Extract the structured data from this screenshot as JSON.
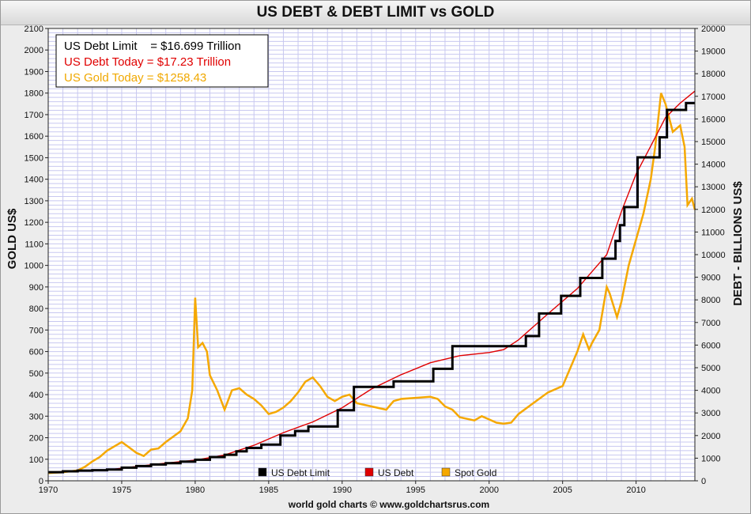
{
  "title": "US DEBT & DEBT LIMIT vs GOLD",
  "info_box": [
    {
      "text": "US Debt Limit    = $16.699 Trillion",
      "color": "#000000"
    },
    {
      "text": "US Debt Today = $17.23 Trillion",
      "color": "#e00000"
    },
    {
      "text": "US Gold Today = $1258.43",
      "color": "#f0a800"
    }
  ],
  "footer": "world gold charts © www.goldchartsrus.com",
  "colors": {
    "debt_limit": "#000000",
    "debt": "#e00000",
    "gold": "#f5a800",
    "grid": "#c8c8f0"
  },
  "chart_data": {
    "type": "line",
    "title": "US DEBT & DEBT LIMIT vs GOLD",
    "ylabel_left": "GOLD US$",
    "ylabel_right": "DEBT - BILLIONS US$",
    "xlabel": "",
    "xlim": [
      1970,
      2014
    ],
    "ylim_left": [
      0,
      2100
    ],
    "ylim_right": [
      0,
      20000
    ],
    "grid": true,
    "legend_position": "bottom-center",
    "x_ticks": [
      1970,
      1975,
      1980,
      1985,
      1990,
      1995,
      2000,
      2005,
      2010
    ],
    "y_ticks_left": [
      0,
      100,
      200,
      300,
      400,
      500,
      600,
      700,
      800,
      900,
      1000,
      1100,
      1200,
      1300,
      1400,
      1500,
      1600,
      1700,
      1800,
      1900,
      2000,
      2100
    ],
    "y_ticks_right": [
      0,
      1000,
      2000,
      3000,
      4000,
      5000,
      6000,
      7000,
      8000,
      9000,
      10000,
      11000,
      12000,
      13000,
      14000,
      15000,
      16000,
      17000,
      18000,
      19000,
      20000
    ],
    "series": [
      {
        "name": "US Debt Limit",
        "axis": "right",
        "step": true,
        "x": [
          1970,
          1971,
          1972,
          1973,
          1974,
          1975,
          1976,
          1977,
          1978,
          1979,
          1980,
          1981,
          1982,
          1982.8,
          1983.5,
          1984.5,
          1985.8,
          1986.8,
          1987.7,
          1989.7,
          1990.8,
          1993.5,
          1996.2,
          1997.5,
          2002.5,
          2003.4,
          2004.9,
          2006.2,
          2007.7,
          2008.6,
          2008.9,
          2009.2,
          2010.1,
          2011.6,
          2012.1,
          2013.4
        ],
        "values": [
          380,
          420,
          450,
          470,
          500,
          580,
          650,
          720,
          780,
          850,
          930,
          1050,
          1150,
          1300,
          1450,
          1600,
          2000,
          2200,
          2400,
          3120,
          4150,
          4400,
          4950,
          5950,
          6400,
          7400,
          8180,
          8970,
          9820,
          10600,
          11300,
          12100,
          14300,
          15190,
          16400,
          16700
        ]
      },
      {
        "name": "US Debt",
        "axis": "right",
        "step": false,
        "x": [
          1970,
          1972,
          1974,
          1976,
          1978,
          1980,
          1982,
          1984,
          1986,
          1988,
          1990,
          1992,
          1994,
          1996,
          1998,
          2000,
          2001,
          2002,
          2004,
          2006,
          2008,
          2009,
          2010,
          2011,
          2012,
          2013,
          2014
        ],
        "values": [
          380,
          430,
          480,
          630,
          780,
          910,
          1140,
          1570,
          2130,
          2600,
          3230,
          4060,
          4690,
          5220,
          5530,
          5670,
          5800,
          6230,
          7380,
          8500,
          10000,
          11900,
          13560,
          14800,
          16060,
          16700,
          17230
        ]
      },
      {
        "name": "Spot Gold",
        "axis": "left",
        "step": false,
        "x": [
          1970,
          1971,
          1972,
          1972.5,
          1973,
          1973.5,
          1974,
          1974.5,
          1975,
          1975.5,
          1976,
          1976.5,
          1977,
          1977.5,
          1978,
          1978.5,
          1979,
          1979.5,
          1979.8,
          1980.0,
          1980.2,
          1980.5,
          1980.8,
          1981,
          1981.5,
          1982,
          1982.5,
          1983,
          1983.5,
          1984,
          1984.5,
          1985,
          1985.5,
          1986,
          1986.5,
          1987,
          1987.5,
          1988,
          1988.5,
          1989,
          1989.5,
          1990,
          1990.5,
          1991,
          1992,
          1993,
          1993.5,
          1994,
          1995,
          1996,
          1996.5,
          1997,
          1997.5,
          1998,
          1999,
          1999.5,
          2000,
          2000.5,
          2001,
          2001.5,
          2002,
          2003,
          2004,
          2005,
          2005.5,
          2006,
          2006.4,
          2006.8,
          2007,
          2007.5,
          2008,
          2008.2,
          2008.7,
          2009,
          2009.5,
          2010,
          2010.5,
          2011,
          2011.3,
          2011.7,
          2012,
          2012.5,
          2013,
          2013.3,
          2013.5,
          2013.8,
          2014
        ],
        "values": [
          36,
          40,
          48,
          65,
          90,
          110,
          140,
          160,
          180,
          155,
          130,
          115,
          145,
          150,
          180,
          205,
          230,
          290,
          420,
          850,
          620,
          640,
          600,
          490,
          420,
          330,
          420,
          430,
          400,
          380,
          350,
          310,
          320,
          340,
          370,
          410,
          460,
          480,
          440,
          390,
          370,
          390,
          400,
          360,
          345,
          330,
          370,
          380,
          385,
          390,
          380,
          345,
          330,
          295,
          280,
          300,
          285,
          270,
          265,
          270,
          310,
          360,
          410,
          440,
          520,
          600,
          680,
          610,
          640,
          700,
          900,
          870,
          760,
          830,
          1000,
          1120,
          1240,
          1400,
          1550,
          1800,
          1750,
          1620,
          1650,
          1550,
          1280,
          1310,
          1258
        ]
      }
    ]
  }
}
